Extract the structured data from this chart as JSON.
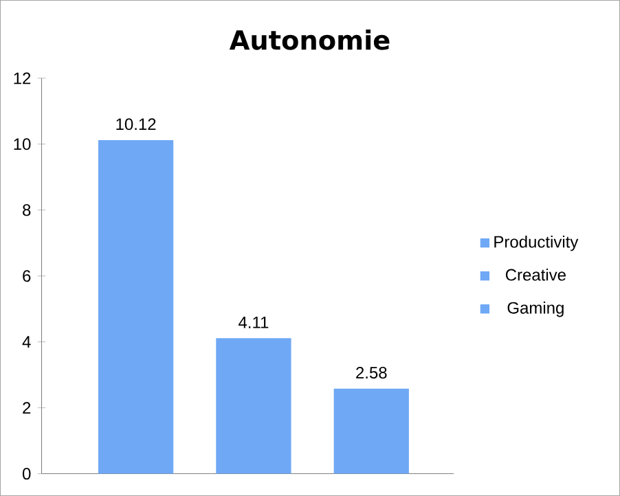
{
  "chart_data": {
    "type": "bar",
    "title": "Autonomie",
    "categories": [
      null,
      null,
      null
    ],
    "series": [
      {
        "name": "Productivity",
        "color": "#6fa8f5",
        "values": [
          10.12,
          null,
          null
        ]
      },
      {
        "name": "Creative",
        "color": "#6fa8f5",
        "values": [
          null,
          4.11,
          null
        ]
      },
      {
        "name": "Gaming",
        "color": "#6fa8f5",
        "values": [
          null,
          null,
          2.58
        ]
      }
    ],
    "ylim": [
      0,
      12
    ],
    "yticks": [
      0,
      2,
      4,
      6,
      8,
      10,
      12
    ],
    "data_labels": true,
    "legend": "right",
    "grid": false
  }
}
